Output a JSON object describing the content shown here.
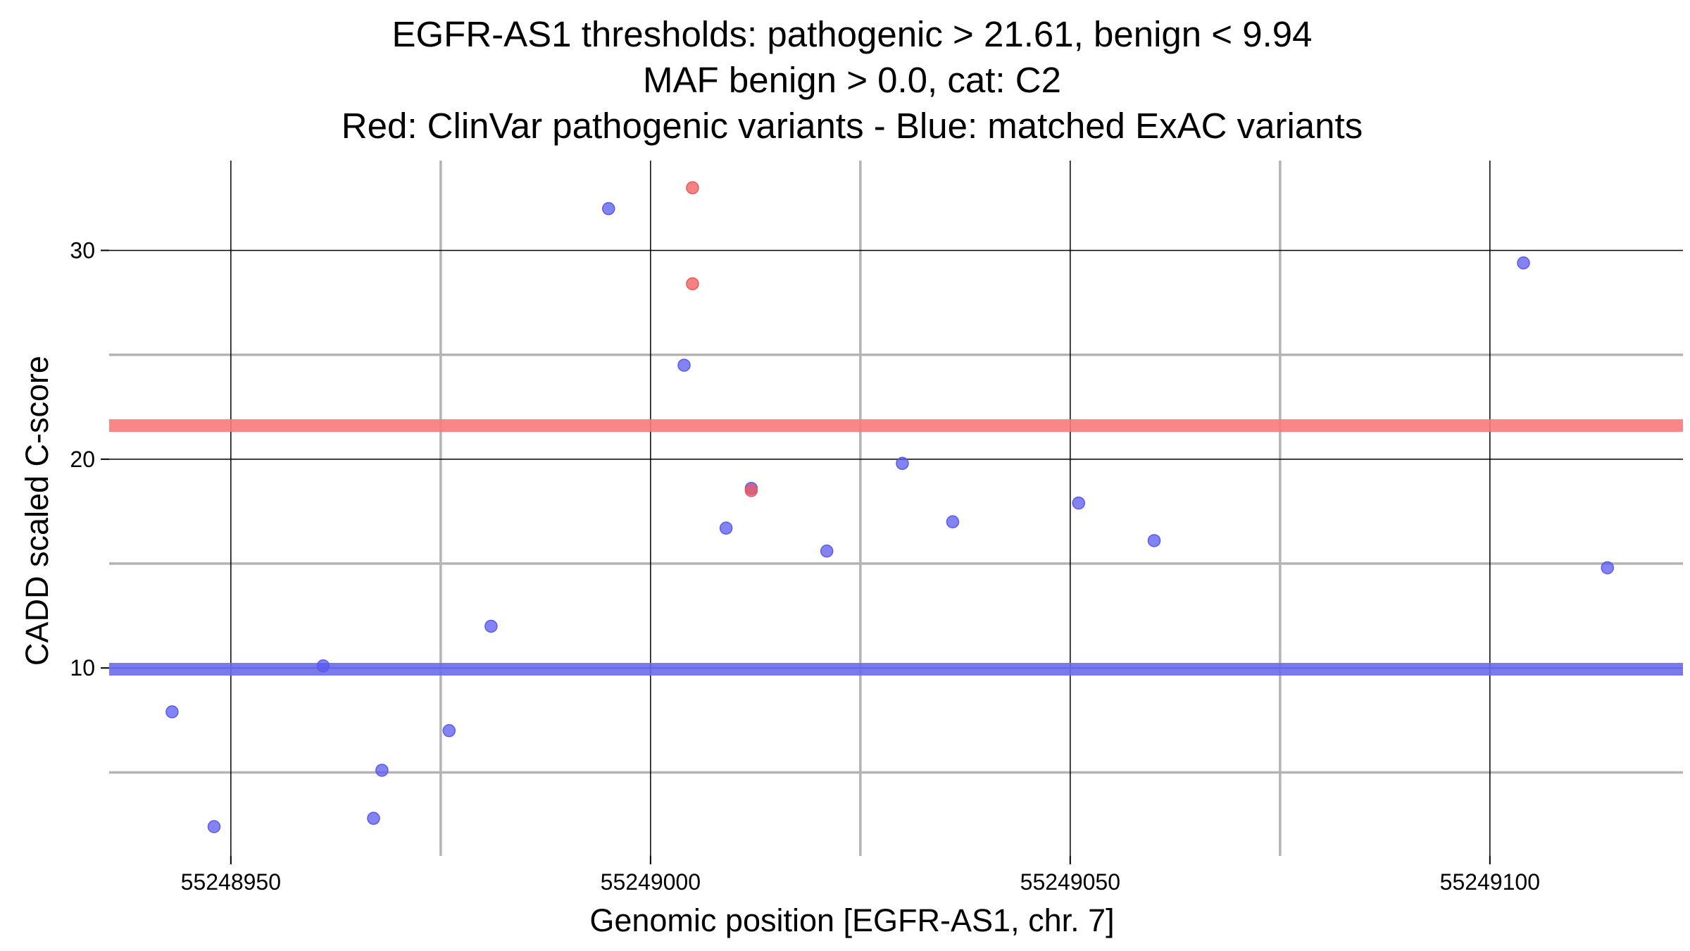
{
  "chart_data": {
    "type": "scatter",
    "title": [
      "EGFR-AS1 thresholds: pathogenic > 21.61, benign < 9.94",
      "MAF benign > 0.0, cat: C2",
      "Red: ClinVar pathogenic variants - Blue: matched ExAC variants"
    ],
    "xlabel": "Genomic position [EGFR-AS1, chr. 7]",
    "ylabel": "CADD scaled C-score",
    "xlim": [
      55248935.5,
      55249123
    ],
    "ylim": [
      1.0,
      34.3
    ],
    "x_major_ticks": [
      55248950,
      55249000,
      55249050,
      55249100
    ],
    "x_tick_labels": [
      "55248950",
      "55249000",
      "55249050",
      "55249100"
    ],
    "x_minor_ticks": [
      55248975,
      55249025,
      55249075
    ],
    "y_major_ticks": [
      10,
      20,
      30
    ],
    "y_tick_labels": [
      "10",
      "20",
      "30"
    ],
    "y_minor_ticks": [
      5,
      15,
      25
    ],
    "thresholds": [
      {
        "name": "pathogenic",
        "value": 21.61,
        "color": "#f87a7a"
      },
      {
        "name": "benign",
        "value": 9.94,
        "color": "#6a6af0"
      }
    ],
    "series": [
      {
        "name": "ClinVar pathogenic variants",
        "color": "#f05858",
        "points": [
          {
            "x": 55249005,
            "y": 33.0
          },
          {
            "x": 55249005,
            "y": 28.4
          },
          {
            "x": 55249012,
            "y": 18.5
          }
        ]
      },
      {
        "name": "matched ExAC variants",
        "color": "#5a5af0",
        "points": [
          {
            "x": 55248943,
            "y": 7.9
          },
          {
            "x": 55248948,
            "y": 2.4
          },
          {
            "x": 55248961,
            "y": 10.1
          },
          {
            "x": 55248967,
            "y": 2.8
          },
          {
            "x": 55248968,
            "y": 5.1
          },
          {
            "x": 55248976,
            "y": 7.0
          },
          {
            "x": 55248981,
            "y": 12.0
          },
          {
            "x": 55248995,
            "y": 32.0
          },
          {
            "x": 55249004,
            "y": 24.5
          },
          {
            "x": 55249009,
            "y": 16.7
          },
          {
            "x": 55249012,
            "y": 18.6
          },
          {
            "x": 55249021,
            "y": 15.6
          },
          {
            "x": 55249030,
            "y": 19.8
          },
          {
            "x": 55249036,
            "y": 17.0
          },
          {
            "x": 55249051,
            "y": 17.9
          },
          {
            "x": 55249060,
            "y": 16.1
          },
          {
            "x": 55249104,
            "y": 29.4
          },
          {
            "x": 55249114,
            "y": 14.8
          }
        ]
      }
    ]
  }
}
